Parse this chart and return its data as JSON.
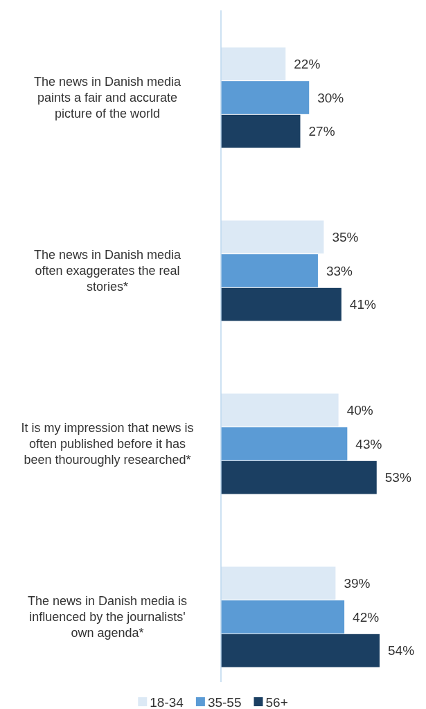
{
  "chart_data": {
    "type": "bar",
    "orientation": "horizontal",
    "categories": [
      "The news in Danish media paints a fair and accurate picture of the world",
      "The news in Danish media often exaggerates the real stories*",
      "It is my impression that news is often published before it has been thouroughly researched*",
      "The news in Danish media is influenced by the journalists' own agenda*"
    ],
    "series": [
      {
        "name": "18-34",
        "color": "#dce9f5",
        "values": [
          22,
          35,
          40,
          39
        ],
        "value_labels": [
          "22%",
          "35%",
          "40%",
          "39%"
        ]
      },
      {
        "name": "35-55",
        "color": "#5b9bd5",
        "values": [
          30,
          33,
          43,
          42
        ],
        "value_labels": [
          "30%",
          "33%",
          "43%",
          "42%"
        ]
      },
      {
        "name": "56+",
        "color": "#1b3f62",
        "values": [
          27,
          41,
          53,
          54
        ],
        "value_labels": [
          "27%",
          "41%",
          "53%",
          "54%"
        ]
      }
    ],
    "legend": "bottom"
  }
}
